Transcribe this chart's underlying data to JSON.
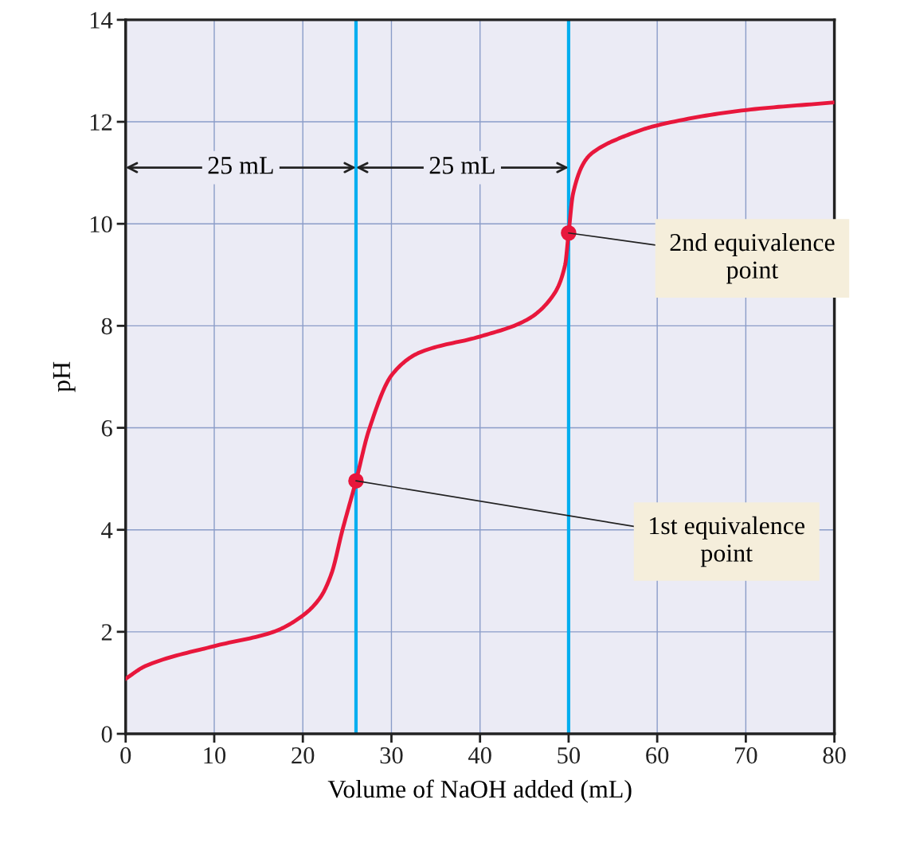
{
  "chart_data": {
    "type": "line",
    "xlabel": "Volume of NaOH added (mL)",
    "ylabel": "pH",
    "xlim": [
      0,
      80
    ],
    "xticks": [
      0,
      10,
      20,
      30,
      40,
      50,
      60,
      70,
      80
    ],
    "ylim": [
      0,
      14
    ],
    "yticks": [
      0,
      2,
      4,
      6,
      8,
      10,
      12,
      14
    ],
    "grid": true,
    "legend": false,
    "series": [
      {
        "color": "#e8173c",
        "marker": "none",
        "line_style": "solid",
        "x": [
          0,
          2.25,
          10,
          16.7,
          20,
          22,
          23.25,
          24.45,
          26,
          27.45,
          30.1,
          33.1,
          40,
          45.1,
          48.1,
          49.6,
          50,
          50.5,
          52.0,
          52.9,
          56.2,
          60,
          70,
          80
        ],
        "values": [
          1.08,
          1.33,
          1.72,
          2.0,
          2.32,
          2.68,
          3.15,
          3.98,
          4.96,
          5.95,
          7.05,
          7.47,
          7.79,
          8.1,
          8.56,
          9.19,
          9.82,
          10.59,
          11.27,
          11.42,
          11.71,
          11.93,
          12.23,
          12.38
        ]
      },
      {
        "type": "scatter",
        "color": "#e8173c",
        "marker": "circle",
        "x": [
          26,
          50
        ],
        "values": [
          4.96,
          9.82
        ]
      }
    ],
    "ref_lines": [
      {
        "axis": "x",
        "value": 26,
        "color": "#00aeef",
        "line_style": "solid"
      },
      {
        "axis": "x",
        "value": 50,
        "color": "#00aeef",
        "line_style": "solid"
      }
    ],
    "annotations": [
      "25 mL",
      "25 mL",
      {
        "text": "1st equivalence\npoint",
        "x": 26,
        "y": 4.96
      },
      {
        "text": "2nd equivalence\npoint",
        "x": 50,
        "y": 9.82
      }
    ]
  }
}
